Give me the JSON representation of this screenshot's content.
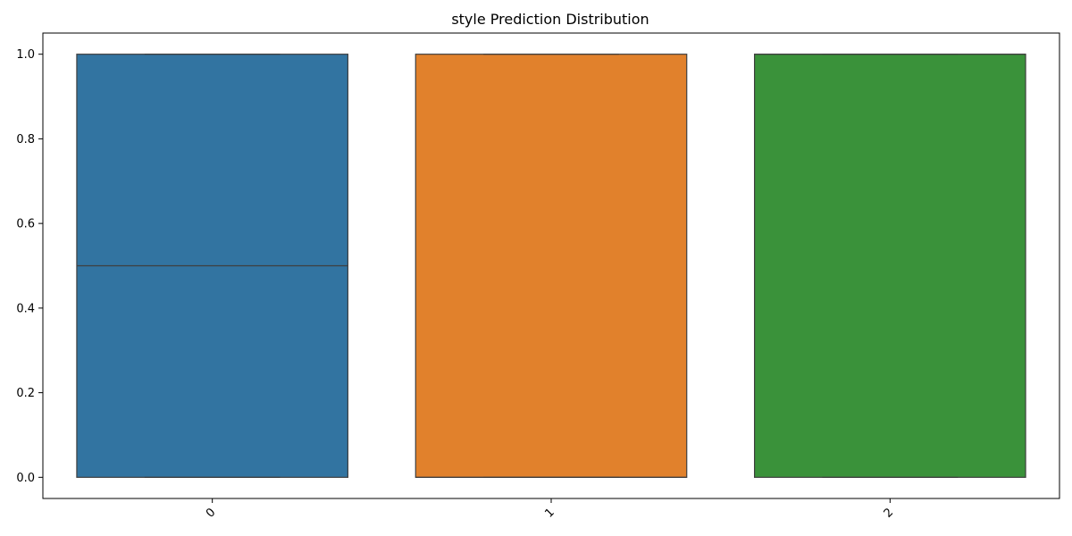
{
  "chart_data": {
    "type": "box",
    "title": "style Prediction Distribution",
    "xlabel": "",
    "ylabel": "",
    "categories": [
      "0",
      "1",
      "2"
    ],
    "ylim": [
      -0.05,
      1.05
    ],
    "yticks": [
      0.0,
      0.2,
      0.4,
      0.6,
      0.8,
      1.0
    ],
    "ytick_labels": [
      "0.0",
      "0.2",
      "0.4",
      "0.6",
      "0.8",
      "1.0"
    ],
    "xtick_rotation": "45 degrees",
    "grid": false,
    "boxes": [
      {
        "category": "0",
        "min": 0.0,
        "q1": 0.0,
        "median": 0.5,
        "q3": 1.0,
        "max": 1.0,
        "color": "#3274a1"
      },
      {
        "category": "1",
        "min": 0.0,
        "q1": 0.0,
        "median": 0.0,
        "q3": 1.0,
        "max": 1.0,
        "color": "#e1812c"
      },
      {
        "category": "2",
        "min": 0.0,
        "q1": 0.0,
        "median": 1.0,
        "q3": 1.0,
        "max": 1.0,
        "color": "#3a923a"
      }
    ]
  }
}
